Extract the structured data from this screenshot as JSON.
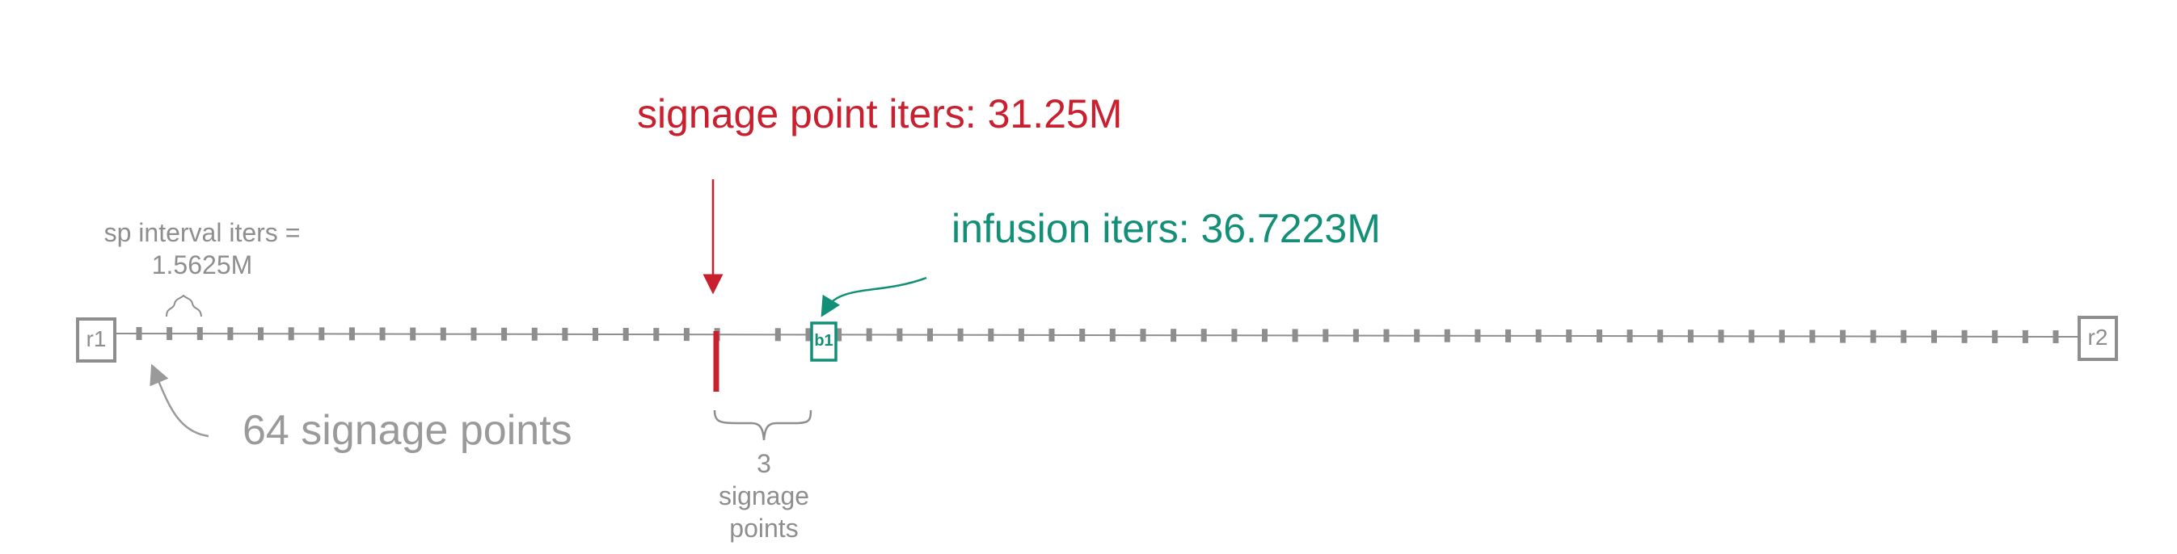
{
  "labels": {
    "signage_point_iters": "signage point iters: 31.25M",
    "infusion_iters": "infusion iters: 36.7223M",
    "sp_interval_line1": "sp interval iters =",
    "sp_interval_line2": "1.5625M",
    "sp_count": "64 signage points",
    "gap_line1": "3",
    "gap_line2": "signage",
    "gap_line3": "points",
    "start_box": "r1",
    "end_box": "r2",
    "block_box": "b1"
  },
  "diagram": {
    "total_signage_points": 64,
    "signage_point_index": 20,
    "infusion_gap_signage_points": 3,
    "colors": {
      "timeline": "#8e8e8e",
      "signage_point": "#c8202f",
      "infusion": "#148f77"
    }
  }
}
